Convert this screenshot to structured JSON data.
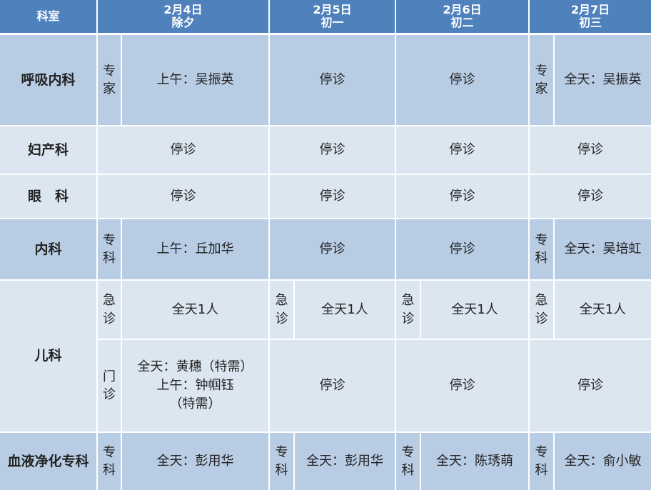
{
  "header": {
    "department": "科室",
    "days": [
      {
        "date": "2月4日",
        "label": "除夕"
      },
      {
        "date": "2月5日",
        "label": "初一"
      },
      {
        "date": "2月6日",
        "label": "初二"
      },
      {
        "date": "2月7日",
        "label": "初三"
      }
    ]
  },
  "rows": {
    "respiratory": {
      "name": "呼吸内科",
      "d1_type": "专\n家",
      "d1": "上午：吴振英",
      "d2": "停诊",
      "d3": "停诊",
      "d4_type": "专\n家",
      "d4": "全天：吴振英"
    },
    "obgyn": {
      "name": "妇产科",
      "d1": "停诊",
      "d2": "停诊",
      "d3": "停诊",
      "d4": "停诊"
    },
    "eye": {
      "name": "眼　科",
      "d1": "停诊",
      "d2": "停诊",
      "d3": "停诊",
      "d4": "停诊"
    },
    "internal": {
      "name": "内科",
      "d1_type": "专\n科",
      "d1": "上午：丘加华",
      "d2": "停诊",
      "d3": "停诊",
      "d4_type": "专\n科",
      "d4": "全天：吴培虹"
    },
    "pediatrics": {
      "name": "儿科",
      "emergency": {
        "type": "急\n诊",
        "d1": "全天1人",
        "d2": "全天1人",
        "d3": "全天1人",
        "d4": "全天1人"
      },
      "outpatient": {
        "type": "门\n诊",
        "d1": "全天：黄穗（特需）\n上午：钟帼钰\n（特需）",
        "d2": "停诊",
        "d3": "停诊",
        "d4": "停诊"
      }
    },
    "blood_purification": {
      "name": "血液净化专科",
      "type": "专\n科",
      "d1": "全天：彭用华",
      "d2": "全天：彭用华",
      "d3": "全天：陈琇萌",
      "d4": "全天：俞小敏"
    }
  },
  "colors": {
    "header": "#4f81bd",
    "dark_row": "#b8cce4",
    "light_row": "#dce6f1"
  }
}
